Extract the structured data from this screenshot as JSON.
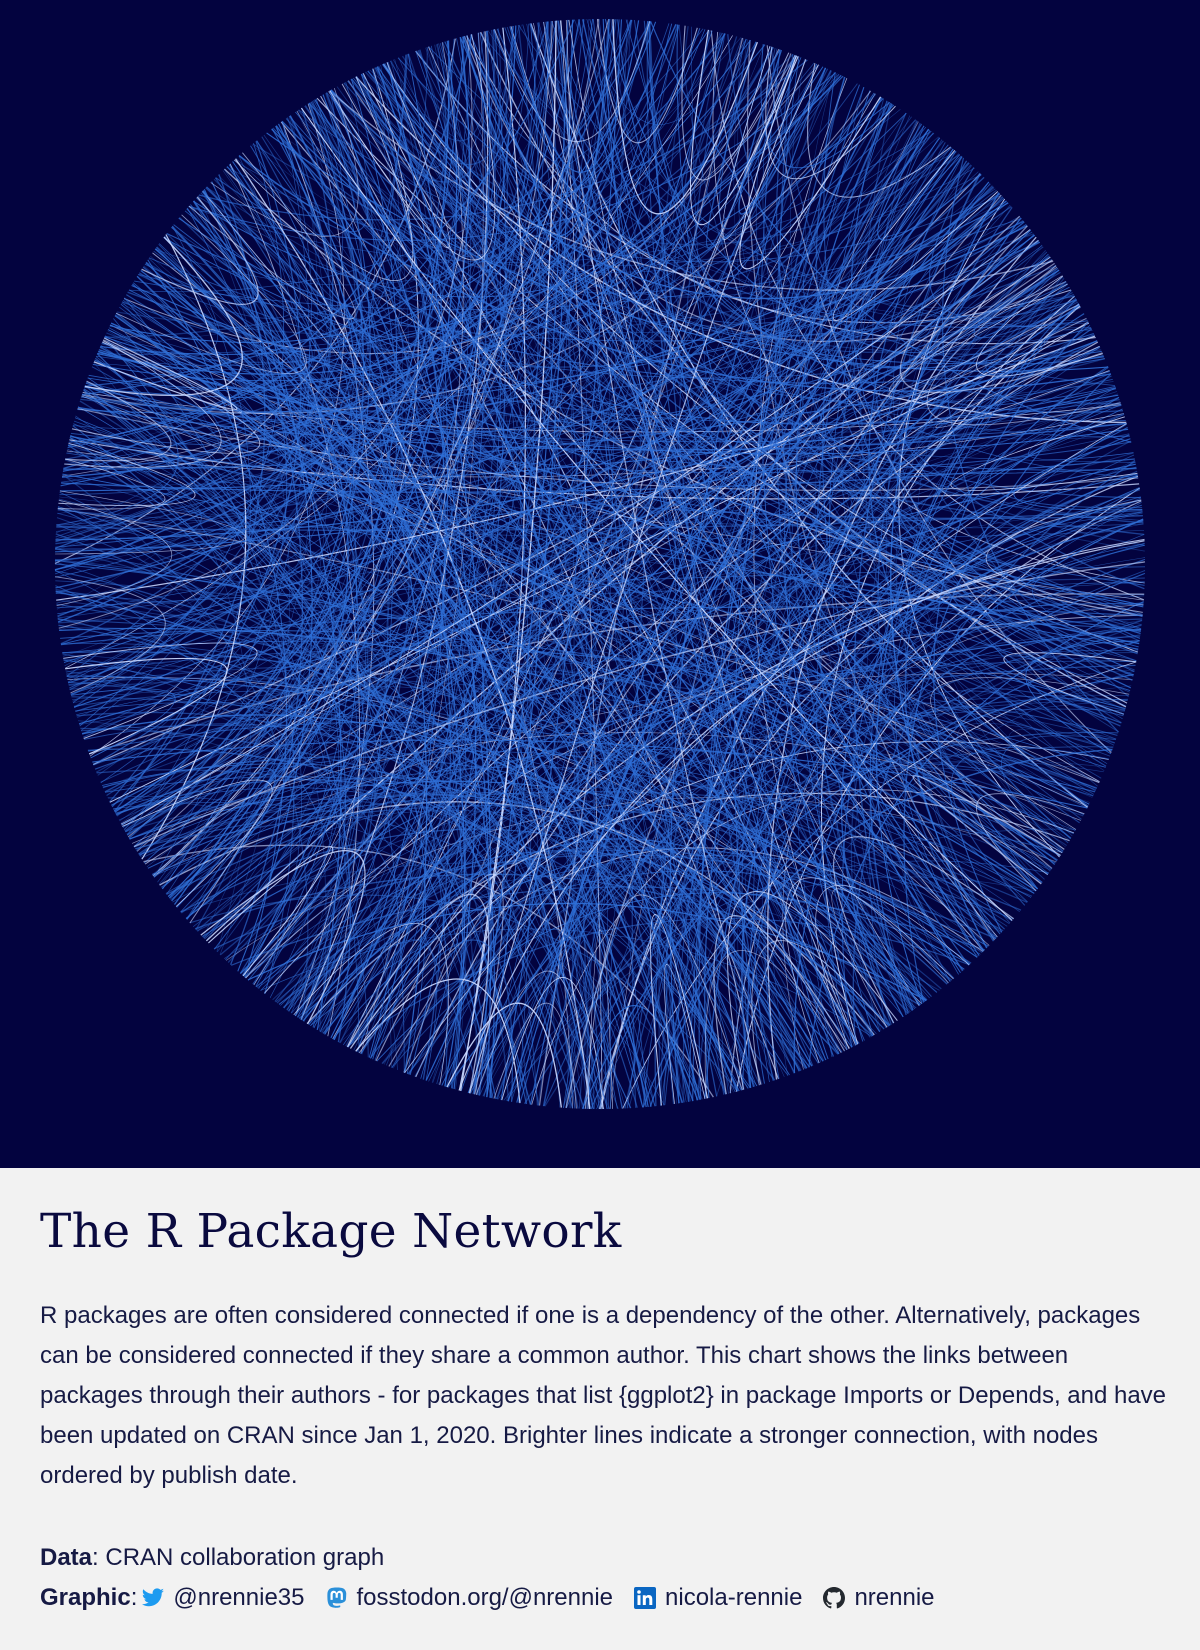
{
  "network": {
    "background": "#03033f",
    "edge_color": "#2f6fd6",
    "strong_edge_color": "#c9d8ff"
  },
  "caption": {
    "title": "The R Package Network",
    "description": "R packages are often considered connected if one is a dependency of the other. Alternatively, packages can be considered connected if they share a common author. This chart shows the links between packages through their authors - for packages that list {ggplot2} in package Imports or Depends, and have been updated on CRAN since Jan 1, 2020. Brighter lines indicate a stronger connection, with nodes ordered by publish date.",
    "data_label": "Data",
    "data_value": ": CRAN collaboration graph",
    "graphic_label": "Graphic",
    "graphic_sep": ":",
    "socials": [
      {
        "icon": "twitter-icon",
        "text": "@nrennie35",
        "color": "#1d9bf0"
      },
      {
        "icon": "mastodon-icon",
        "text": "fosstodon.org/@nrennie",
        "color": "#2b90d9"
      },
      {
        "icon": "linkedin-icon",
        "text": "nicola-rennie",
        "color": "#0a66c2"
      },
      {
        "icon": "github-icon",
        "text": "nrennie",
        "color": "#24292f"
      }
    ]
  }
}
